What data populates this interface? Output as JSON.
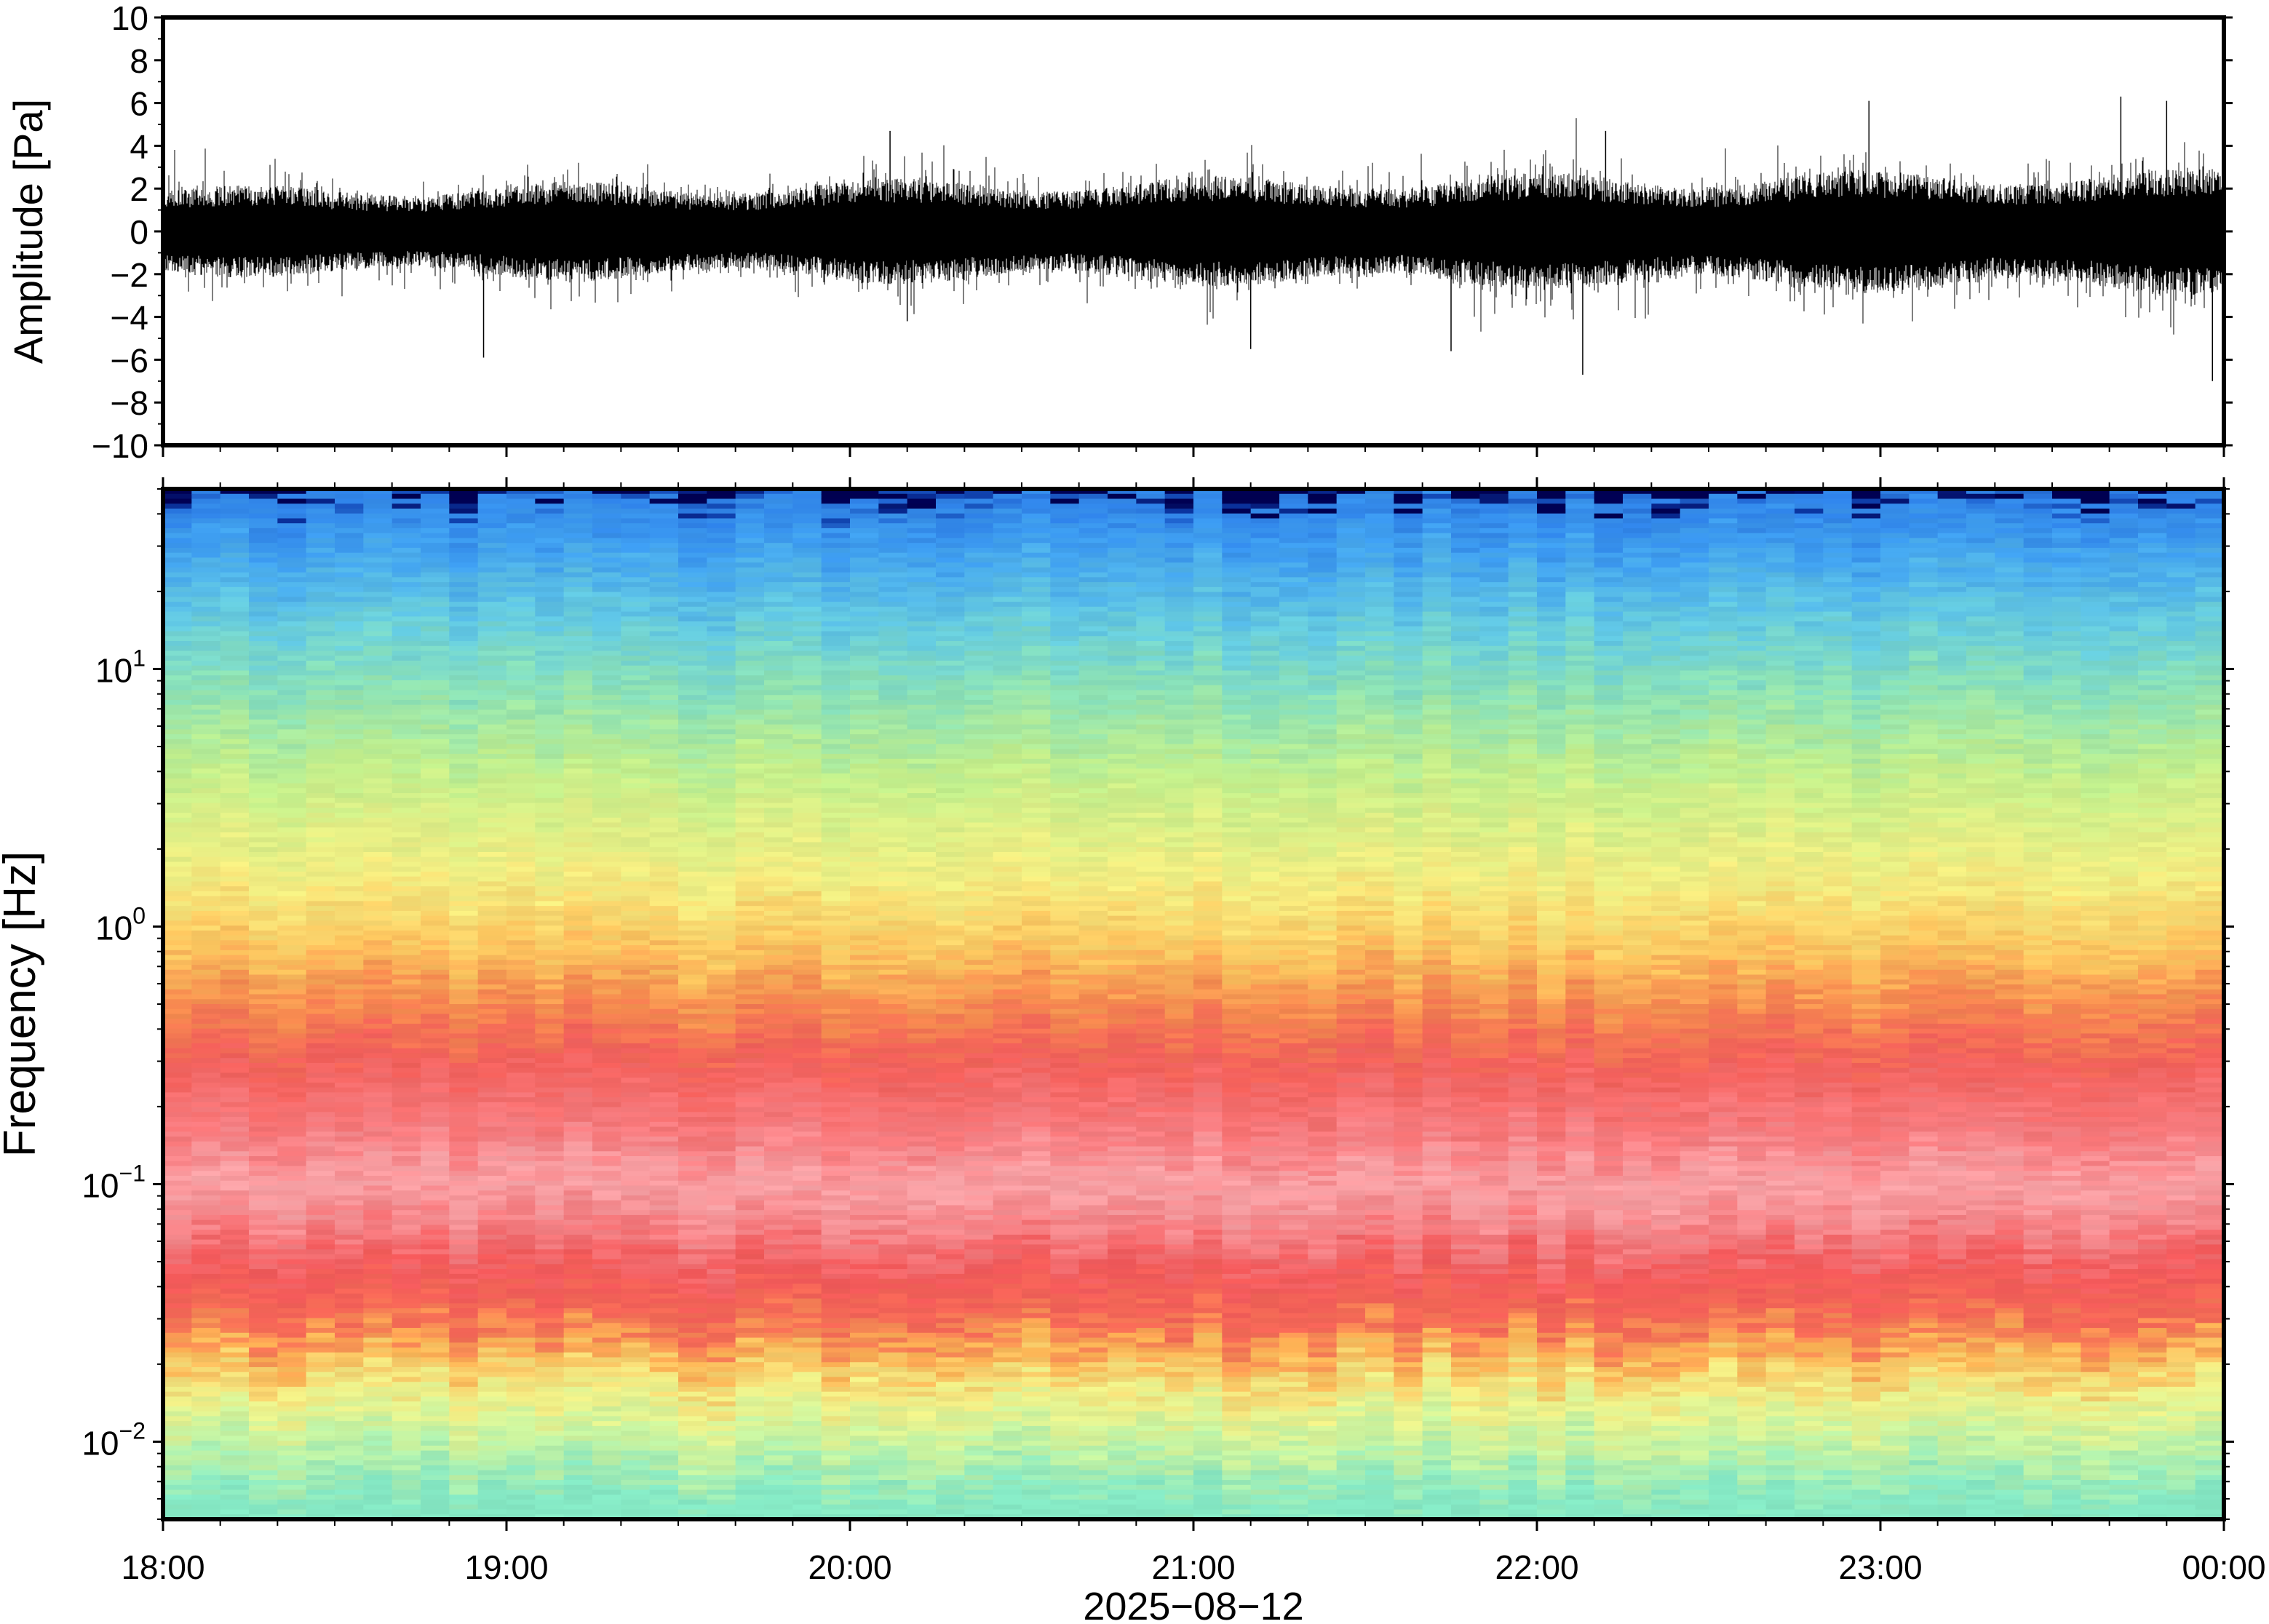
{
  "chart_data": [
    {
      "type": "line",
      "ylabel": "Amplitude [Pa]",
      "ylim": [
        -10,
        10
      ],
      "yticks": [
        10,
        8,
        6,
        4,
        2,
        0,
        -2,
        -4,
        -6,
        -8,
        -10
      ],
      "ytick_labels": [
        "10",
        "8",
        "6",
        "4",
        "2",
        "0",
        "−2",
        "−4",
        "−6",
        "−8",
        "−10"
      ],
      "x_range": [
        "18:00",
        "00:00"
      ],
      "typical_amplitude": [
        -2,
        2
      ],
      "waveform_peaks": [
        {
          "time": "18:56",
          "value": -5.9
        },
        {
          "time": "20:07",
          "value": 4.7
        },
        {
          "time": "20:10",
          "value": -4.2
        },
        {
          "time": "21:10",
          "value": -5.5
        },
        {
          "time": "21:45",
          "value": -5.6
        },
        {
          "time": "22:08",
          "value": -6.7
        },
        {
          "time": "22:12",
          "value": 4.7
        },
        {
          "time": "22:58",
          "value": 6.1
        },
        {
          "time": "23:42",
          "value": 6.3
        },
        {
          "time": "23:50",
          "value": 6.1
        },
        {
          "time": "23:58",
          "value": -7.0
        }
      ],
      "line_color": "#000000",
      "grid": false
    },
    {
      "type": "heatmap",
      "ylabel": "Frequency [Hz]",
      "yscale": "log",
      "ylim": [
        0.005,
        50
      ],
      "yticks": [
        10,
        1,
        0.1,
        0.01
      ],
      "ytick_labels": [
        {
          "base": "10",
          "exp": "1"
        },
        {
          "base": "10",
          "exp": "0"
        },
        {
          "base": "10",
          "exp": "−1"
        },
        {
          "base": "10",
          "exp": "−2"
        }
      ],
      "colormap": [
        "#00004a",
        "#0a2aa0",
        "#2f86e8",
        "#47b8ee",
        "#78e0d2",
        "#b8f0a4",
        "#eef794",
        "#fbd972",
        "#f9a64e",
        "#f25c57",
        "#f78e8e",
        "#f9b0b4"
      ],
      "frequency_profile": [
        {
          "freq_hz": 0.006,
          "color": "#85e8c4"
        },
        {
          "freq_hz": 0.01,
          "color": "#c8f3a0"
        },
        {
          "freq_hz": 0.015,
          "color": "#f0f088"
        },
        {
          "freq_hz": 0.022,
          "color": "#fbb254"
        },
        {
          "freq_hz": 0.03,
          "color": "#f46a56"
        },
        {
          "freq_hz": 0.045,
          "color": "#f2585a"
        },
        {
          "freq_hz": 0.07,
          "color": "#f5868a"
        },
        {
          "freq_hz": 0.1,
          "color": "#f8a4a8"
        },
        {
          "freq_hz": 0.15,
          "color": "#f77e82"
        },
        {
          "freq_hz": 0.3,
          "color": "#f25f5a"
        },
        {
          "freq_hz": 0.5,
          "color": "#f58a4f"
        },
        {
          "freq_hz": 0.8,
          "color": "#fbc45e"
        },
        {
          "freq_hz": 1.5,
          "color": "#f4ee82"
        },
        {
          "freq_hz": 4,
          "color": "#c2ef8c"
        },
        {
          "freq_hz": 8,
          "color": "#8ce2b6"
        },
        {
          "freq_hz": 15,
          "color": "#66cce0"
        },
        {
          "freq_hz": 30,
          "color": "#3f9ff0"
        },
        {
          "freq_hz": 45,
          "color": "#2e80e6"
        },
        {
          "freq_hz": 48,
          "color": "#0c3aa8"
        },
        {
          "freq_hz": 50,
          "color": "#000052"
        }
      ],
      "grid": false
    }
  ],
  "x_axis": {
    "tick_labels": [
      "18:00",
      "19:00",
      "20:00",
      "21:00",
      "22:00",
      "23:00",
      "00:00"
    ],
    "date_label": "2025−08−12"
  }
}
